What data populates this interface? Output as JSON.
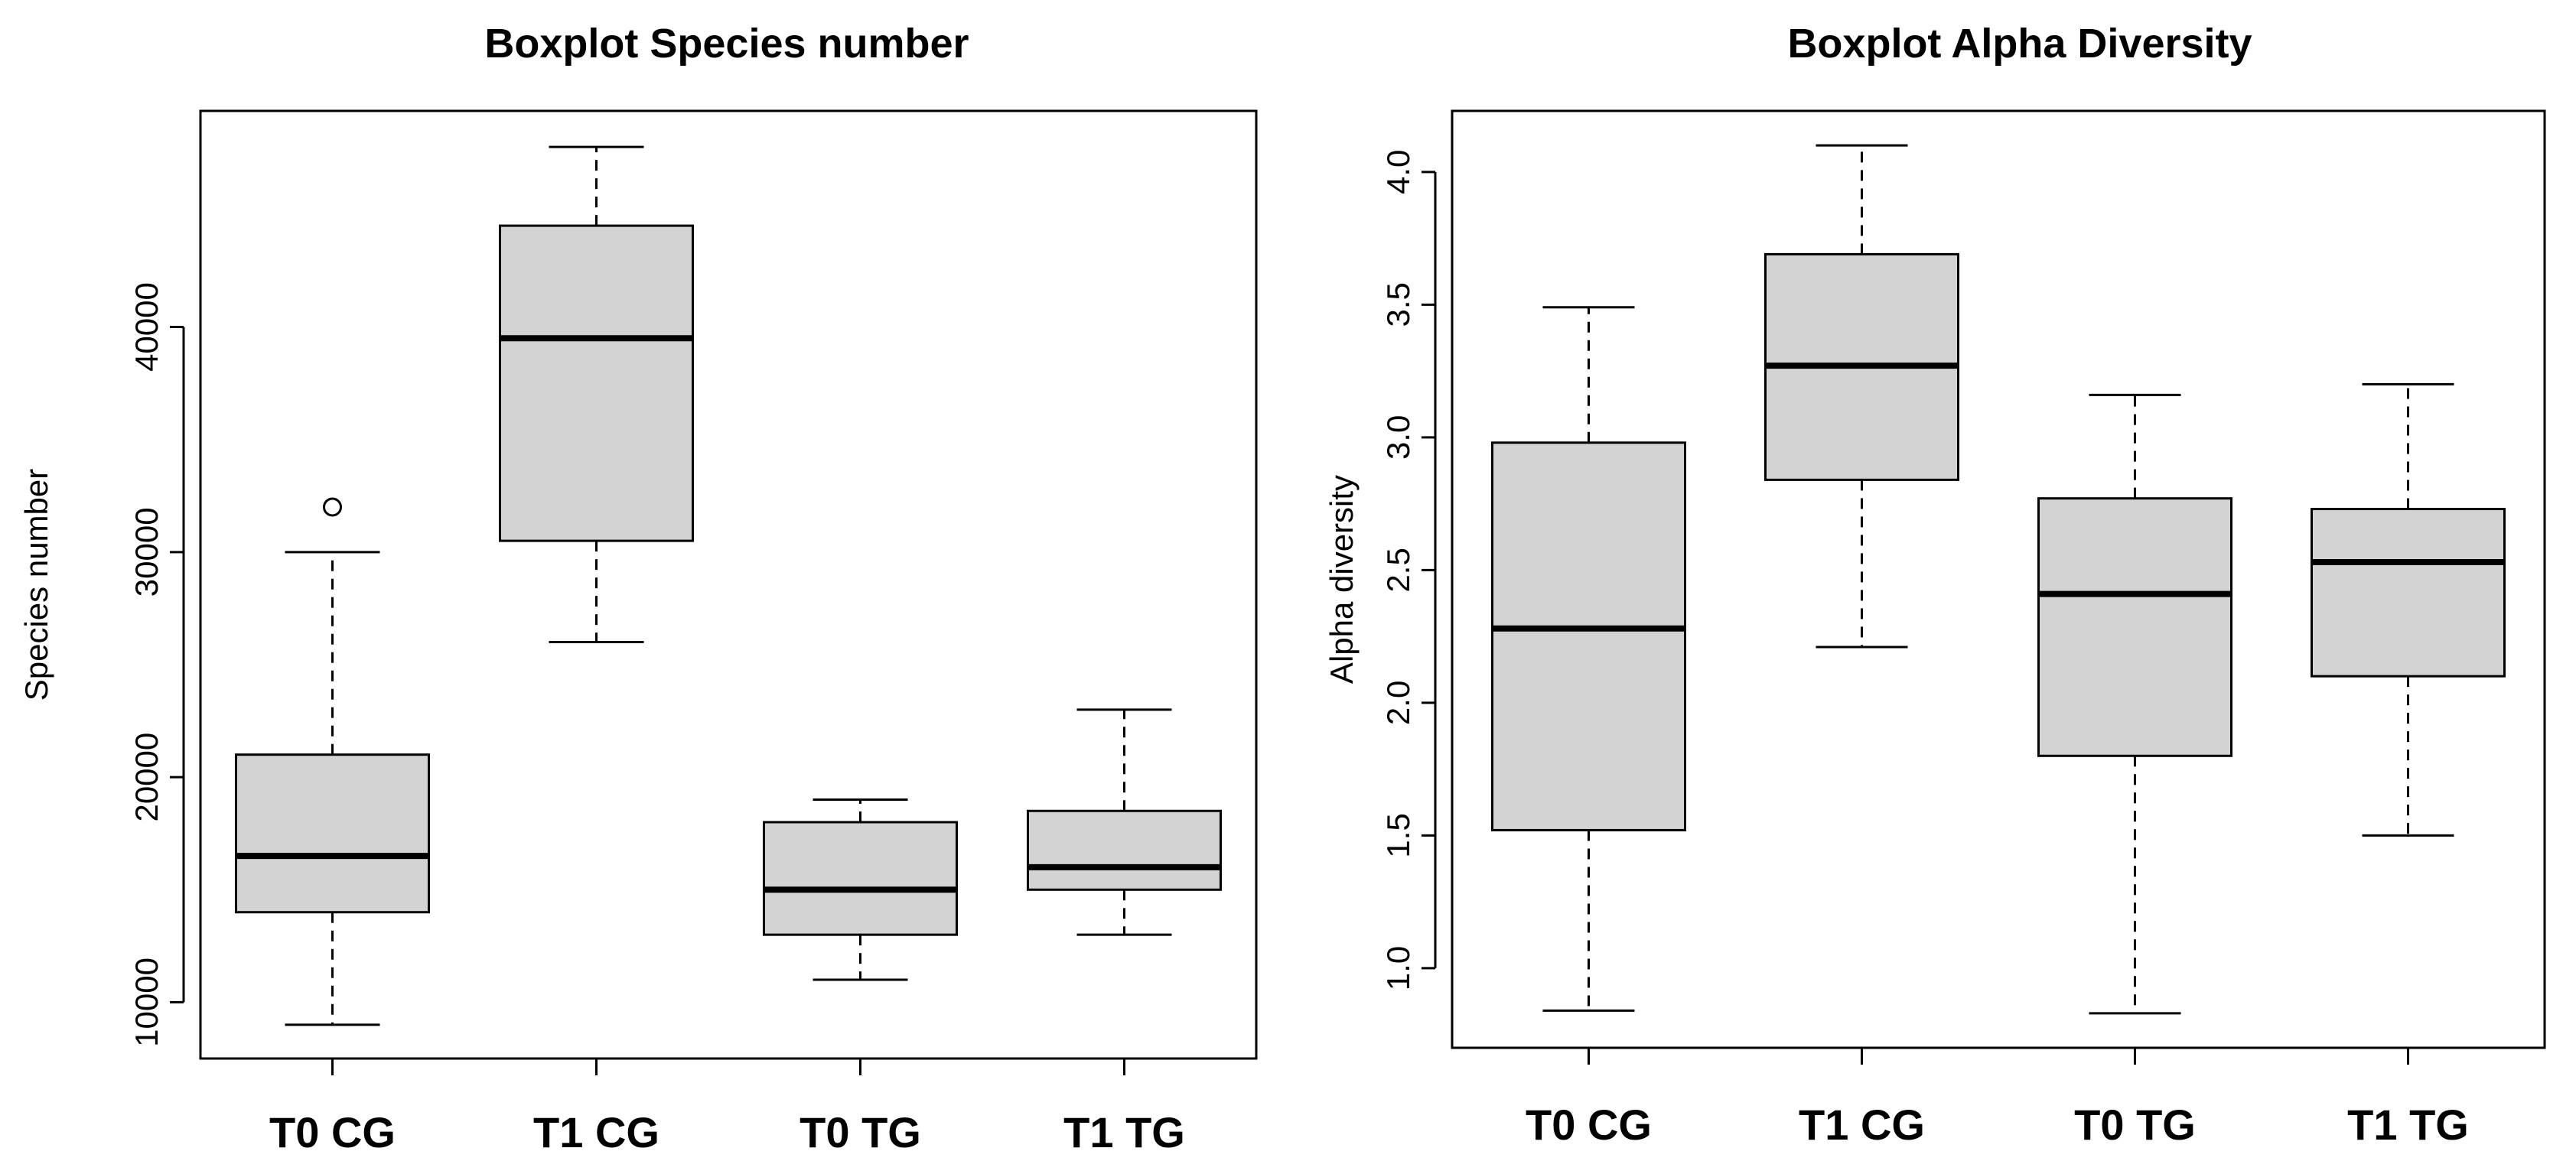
{
  "chart_data": [
    {
      "type": "boxplot",
      "title": "Boxplot Species number",
      "xlabel": "",
      "ylabel": "Species number",
      "ylim": [
        7500,
        49600
      ],
      "yticks": [
        10000,
        20000,
        30000,
        40000
      ],
      "categories": [
        "T0 CG",
        "T1 CG",
        "T0 TG",
        "T1 TG"
      ],
      "boxes": [
        {
          "category": "T0 CG",
          "whisker_low": 9000,
          "q1": 14000,
          "median": 16500,
          "q3": 21000,
          "whisker_high": 30000,
          "outliers": [
            32000
          ]
        },
        {
          "category": "T1 CG",
          "whisker_low": 26000,
          "q1": 30500,
          "median": 39500,
          "q3": 44500,
          "whisker_high": 48000,
          "outliers": []
        },
        {
          "category": "T0 TG",
          "whisker_low": 11000,
          "q1": 13000,
          "median": 15000,
          "q3": 18000,
          "whisker_high": 19000,
          "outliers": []
        },
        {
          "category": "T1 TG",
          "whisker_low": 13000,
          "q1": 15000,
          "median": 16000,
          "q3": 18500,
          "whisker_high": 23000,
          "outliers": []
        }
      ],
      "box_fill": "#d3d3d3",
      "grid": false
    },
    {
      "type": "boxplot",
      "title": "Boxplot Alpha Diversity",
      "xlabel": "",
      "ylabel": "Alpha diversity",
      "ylim": [
        0.7,
        4.23
      ],
      "yticks": [
        1.0,
        1.5,
        2.0,
        2.5,
        3.0,
        3.5,
        4.0
      ],
      "categories": [
        "T0 CG",
        "T1 CG",
        "T0 TG",
        "T1 TG"
      ],
      "boxes": [
        {
          "category": "T0 CG",
          "whisker_low": 0.84,
          "q1": 1.52,
          "median": 2.28,
          "q3": 2.98,
          "whisker_high": 3.49,
          "outliers": []
        },
        {
          "category": "T1 CG",
          "whisker_low": 2.21,
          "q1": 2.84,
          "median": 3.27,
          "q3": 3.69,
          "whisker_high": 4.1,
          "outliers": []
        },
        {
          "category": "T0 TG",
          "whisker_low": 0.83,
          "q1": 1.8,
          "median": 2.41,
          "q3": 2.77,
          "whisker_high": 3.16,
          "outliers": []
        },
        {
          "category": "T1 TG",
          "whisker_low": 1.5,
          "q1": 2.1,
          "median": 2.53,
          "q3": 2.73,
          "whisker_high": 3.2,
          "outliers": []
        }
      ],
      "box_fill": "#d3d3d3",
      "grid": false
    }
  ]
}
